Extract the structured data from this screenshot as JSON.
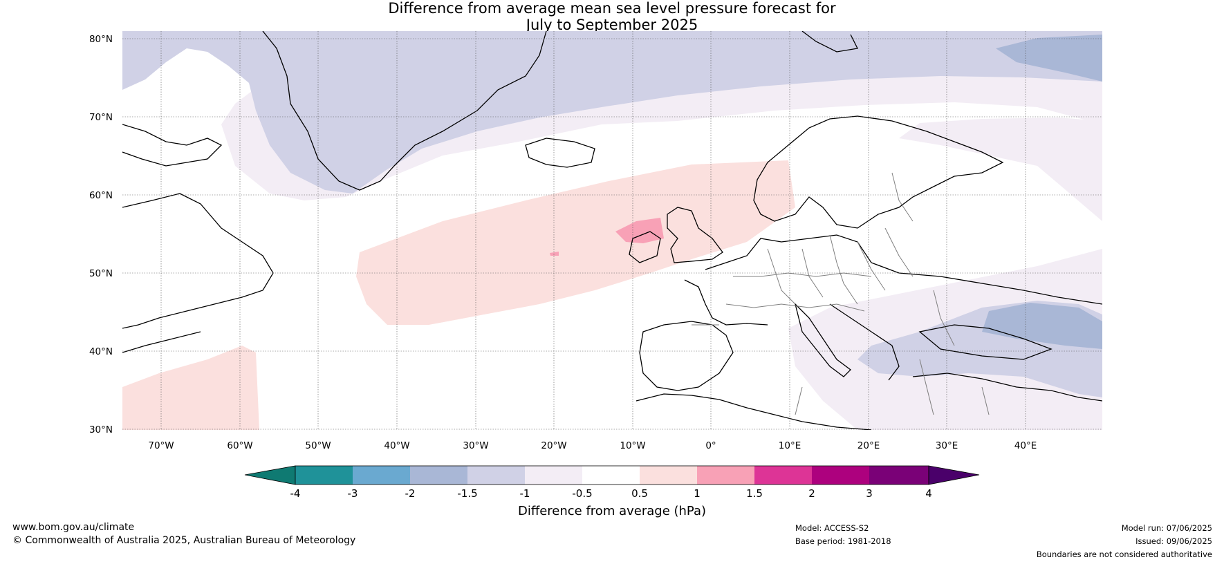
{
  "title": {
    "line1": "Difference from average mean sea level pressure forecast for",
    "line2": "July to September 2025"
  },
  "map": {
    "lat_labels": [
      "80°N",
      "70°N",
      "60°N",
      "50°N",
      "40°N",
      "30°N"
    ],
    "lon_labels": [
      "70°W",
      "60°W",
      "50°W",
      "40°W",
      "30°W",
      "20°W",
      "10°W",
      "0°",
      "10°E",
      "20°E",
      "30°E",
      "40°E"
    ]
  },
  "colorbar": {
    "ticks": [
      "-4",
      "-3",
      "-2",
      "-1.5",
      "-1",
      "-0.5",
      "0.5",
      "1",
      "1.5",
      "2",
      "3",
      "4"
    ],
    "colors": [
      "#0f7a72",
      "#1f9299",
      "#6aa9d0",
      "#a9b7d6",
      "#d0d1e6",
      "#f3edf5",
      "#ffffff",
      "#fbe0de",
      "#f8a1b6",
      "#dd3496",
      "#ad017e",
      "#7a0177",
      "#4a006a"
    ],
    "label": "Difference from average (hPa)"
  },
  "footer": {
    "website": "www.bom.gov.au/climate",
    "copyright": "© Commonwealth of Australia 2025, Australian Bureau of Meteorology",
    "model": "Model: ACCESS-S2",
    "base_period": "Base period: 1981-2018",
    "model_run": "Model run: 07/06/2025",
    "issued": "Issued: 09/06/2025",
    "disclaimer": "Boundaries are not considered authoritative"
  }
}
